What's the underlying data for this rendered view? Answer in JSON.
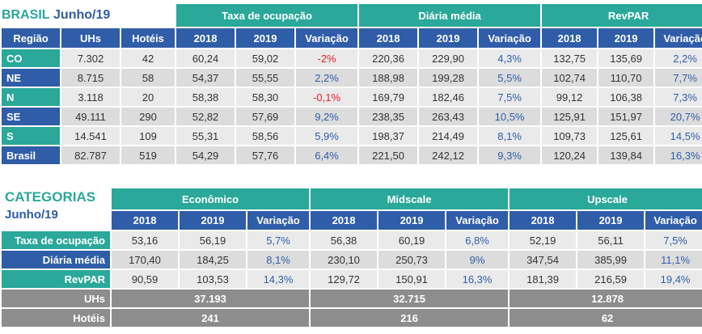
{
  "top": {
    "title_main": "BRASIL",
    "title_sub": "Junho/19",
    "groups": [
      "Taxa de ocupação",
      "Diária média",
      "RevPAR"
    ],
    "columns": [
      "Região",
      "UHs",
      "Hotéis",
      "2018",
      "2019",
      "Variação",
      "2018",
      "2019",
      "Variação",
      "2018",
      "2019",
      "Variação"
    ],
    "rows": [
      {
        "region": "CO",
        "uhs": "7.302",
        "hoteis": "42",
        "to18": "60,24",
        "to19": "59,02",
        "tov": "-2%",
        "dm18": "220,36",
        "dm19": "229,90",
        "dmv": "4,3%",
        "rp18": "132,75",
        "rp19": "135,69",
        "rpv": "2,2%"
      },
      {
        "region": "NE",
        "uhs": "8.715",
        "hoteis": "58",
        "to18": "54,37",
        "to19": "55,55",
        "tov": "2,2%",
        "dm18": "188,98",
        "dm19": "199,28",
        "dmv": "5,5%",
        "rp18": "102,74",
        "rp19": "110,70",
        "rpv": "7,7%"
      },
      {
        "region": "N",
        "uhs": "3.118",
        "hoteis": "20",
        "to18": "58,38",
        "to19": "58,30",
        "tov": "-0,1%",
        "dm18": "169,79",
        "dm19": "182,46",
        "dmv": "7,5%",
        "rp18": "99,12",
        "rp19": "106,38",
        "rpv": "7,3%"
      },
      {
        "region": "SE",
        "uhs": "49.111",
        "hoteis": "290",
        "to18": "52,82",
        "to19": "57,69",
        "tov": "9,2%",
        "dm18": "238,35",
        "dm19": "263,43",
        "dmv": "10,5%",
        "rp18": "125,91",
        "rp19": "151,97",
        "rpv": "20,7%"
      },
      {
        "region": "S",
        "uhs": "14.541",
        "hoteis": "109",
        "to18": "55,31",
        "to19": "58,56",
        "tov": "5,9%",
        "dm18": "198,37",
        "dm19": "214,49",
        "dmv": "8,1%",
        "rp18": "109,73",
        "rp19": "125,61",
        "rpv": "14,5%"
      },
      {
        "region": "Brasil",
        "uhs": "82.787",
        "hoteis": "519",
        "to18": "54,29",
        "to19": "57,76",
        "tov": "6,4%",
        "dm18": "221,50",
        "dm19": "242,12",
        "dmv": "9,3%",
        "rp18": "120,24",
        "rp19": "139,84",
        "rpv": "16,3%"
      }
    ]
  },
  "bottom": {
    "title_main": "CATEGORIAS",
    "title_sub": "Junho/19",
    "groups": [
      "Econômico",
      "Midscale",
      "Upscale"
    ],
    "columns": [
      "2018",
      "2019",
      "Variação",
      "2018",
      "2019",
      "Variação",
      "2018",
      "2019",
      "Variação"
    ],
    "rows": [
      {
        "label": "Taxa de ocupação",
        "e18": "53,16",
        "e19": "56,19",
        "ev": "5,7%",
        "m18": "56,38",
        "m19": "60,19",
        "mv": "6,8%",
        "u18": "52,19",
        "u19": "56,11",
        "uv": "7,5%"
      },
      {
        "label": "Diária média",
        "e18": "170,40",
        "e19": "184,25",
        "ev": "8,1%",
        "m18": "230,10",
        "m19": "250,73",
        "mv": "9%",
        "u18": "347,54",
        "u19": "385,99",
        "uv": "11,1%"
      },
      {
        "label": "RevPAR",
        "e18": "90,59",
        "e19": "103,53",
        "ev": "14,3%",
        "m18": "129,72",
        "m19": "150,91",
        "mv": "16,3%",
        "u18": "181,39",
        "u19": "216,59",
        "uv": "19,4%"
      }
    ],
    "uhs": {
      "label": "UHs",
      "economico": "37.193",
      "midscale": "32.715",
      "upscale": "12.878"
    },
    "hoteis": {
      "label": "Hotéis",
      "economico": "241",
      "midscale": "216",
      "upscale": "62"
    }
  }
}
